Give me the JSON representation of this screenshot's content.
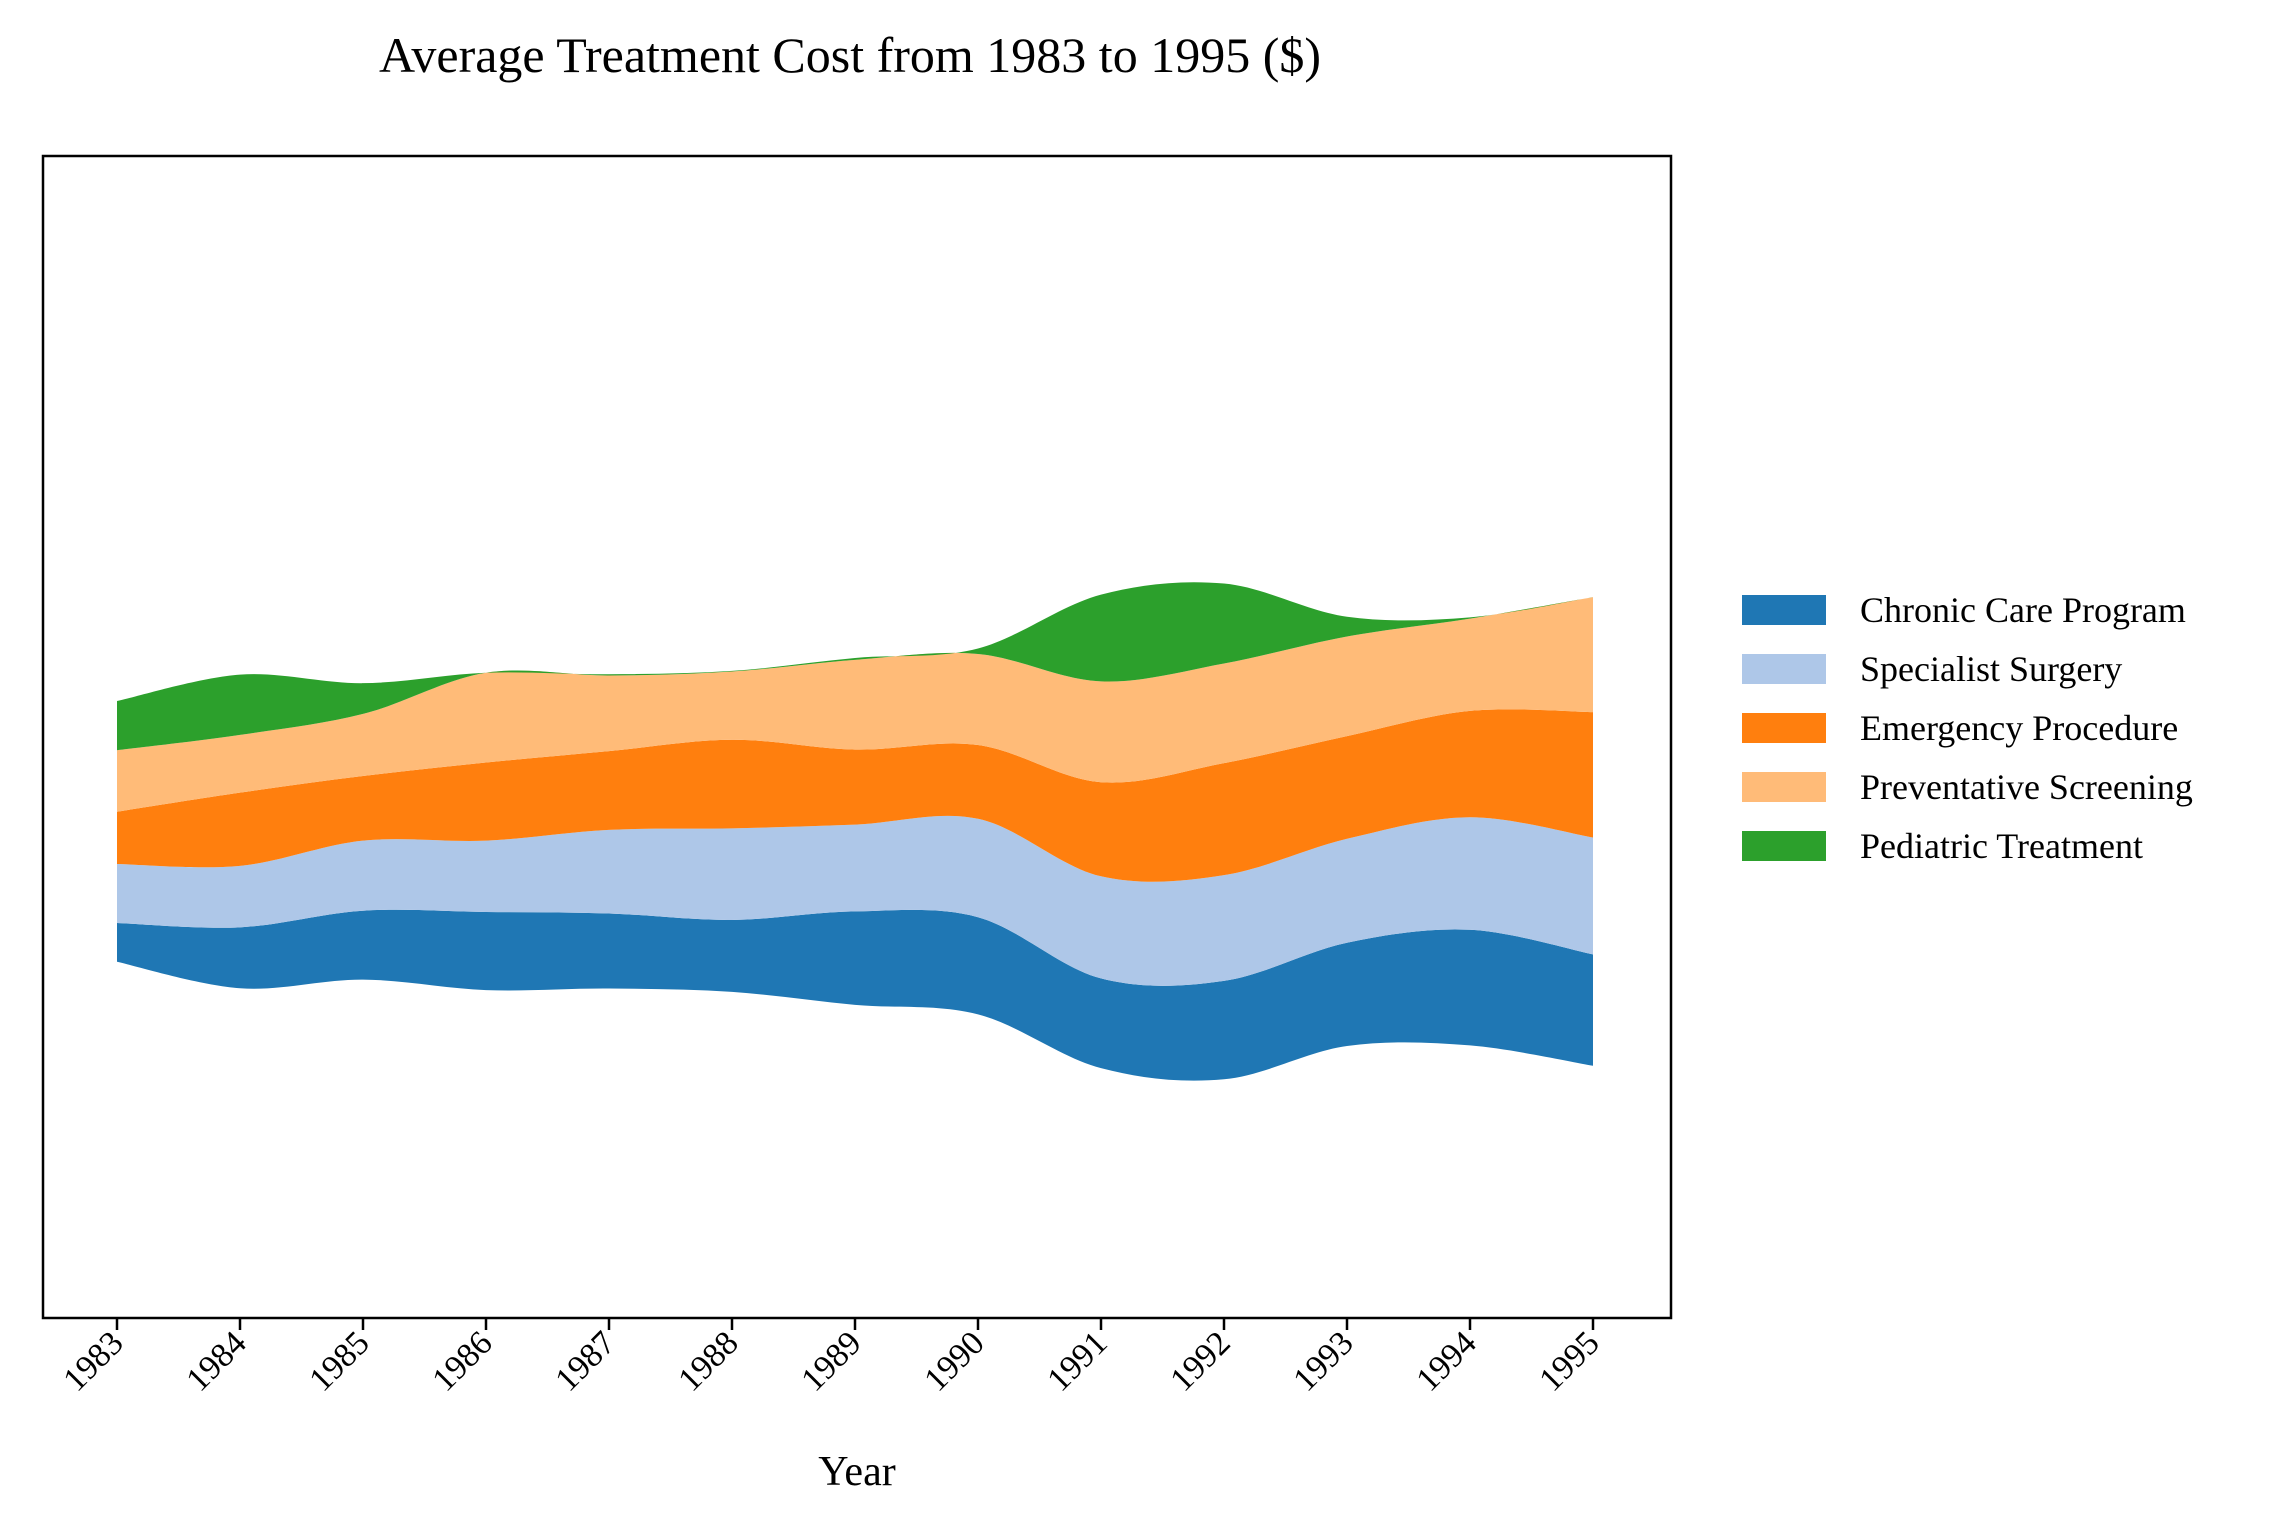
{
  "chart_data": {
    "type": "area",
    "subtype": "streamgraph",
    "title": "Average Treatment Cost from 1983 to 1995 ($)",
    "xlabel": "Year",
    "ylabel": "",
    "x": [
      "1983",
      "1984",
      "1985",
      "1986",
      "1987",
      "1988",
      "1989",
      "1990",
      "1991",
      "1992",
      "1993",
      "1994",
      "1995"
    ],
    "series": [
      {
        "name": "Chronic Care Program",
        "color": "#1f77b4",
        "values": [
          630,
          990,
          1120,
          1270,
          1220,
          1170,
          1520,
          1580,
          1460,
          1600,
          1680,
          1880,
          1810
        ]
      },
      {
        "name": "Specialist Surgery",
        "color": "#aec7e8",
        "values": [
          960,
          1000,
          1140,
          1160,
          1360,
          1490,
          1410,
          1600,
          1660,
          1720,
          1690,
          1830,
          1900
        ]
      },
      {
        "name": "Emergency Procedure",
        "color": "#ff7f0e",
        "values": [
          850,
          1190,
          1050,
          1270,
          1280,
          1440,
          1220,
          1200,
          1530,
          1820,
          1670,
          1730,
          2040
        ]
      },
      {
        "name": "Preventative Screening",
        "color": "#ffbb78",
        "values": [
          1000,
          940,
          1010,
          1460,
          1230,
          1110,
          1460,
          1480,
          1640,
          1620,
          1620,
          1500,
          1870
        ]
      },
      {
        "name": "Pediatric Treatment",
        "color": "#2ca02c",
        "values": [
          800,
          980,
          500,
          0,
          20,
          10,
          30,
          90,
          1410,
          1300,
          320,
          20,
          0
        ]
      }
    ],
    "legend_placement": "center-right",
    "grid": false
  },
  "legend": {
    "items": [
      {
        "label": "Chronic Care Program",
        "color": "#1f77b4"
      },
      {
        "label": "Specialist Surgery",
        "color": "#aec7e8"
      },
      {
        "label": "Emergency Procedure",
        "color": "#ff7f0e"
      },
      {
        "label": "Preventative Screening",
        "color": "#ffbb78"
      },
      {
        "label": "Pediatric Treatment",
        "color": "#2ca02c"
      }
    ]
  }
}
